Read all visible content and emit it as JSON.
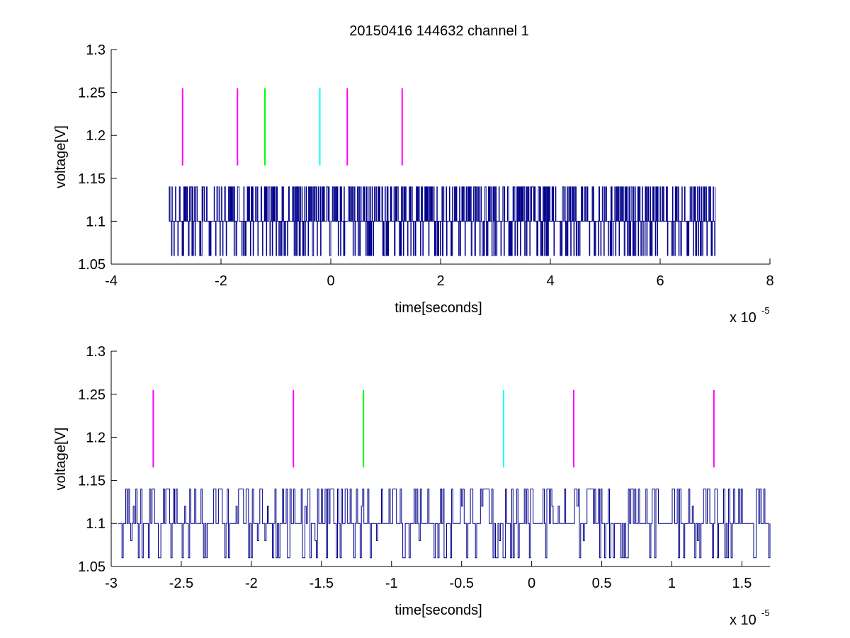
{
  "figure": {
    "title": "20150416 144632 channel 1"
  },
  "chart_data": [
    {
      "type": "line",
      "title": "20150416 144632 channel 1",
      "xlabel": "time[seconds]",
      "ylabel": "voltage[V]",
      "x_exponent_label": "x 10",
      "x_exponent": "-5",
      "xlim": [
        -4,
        8
      ],
      "ylim": [
        1.05,
        1.3
      ],
      "x_ticks": [
        -4,
        -2,
        0,
        2,
        4,
        6,
        8
      ],
      "x_tick_labels": [
        "-4",
        "-2",
        "0",
        "2",
        "4",
        "6",
        "8"
      ],
      "y_ticks": [
        1.05,
        1.1,
        1.15,
        1.2,
        1.25,
        1.3
      ],
      "y_tick_labels": [
        "1.05",
        "1.1",
        "1.15",
        "1.2",
        "1.25",
        "1.3"
      ],
      "grid": false,
      "series": [
        {
          "color": "#00008b",
          "x_range": [
            -2.95,
            7.0
          ],
          "levels": [
            1.06,
            1.1,
            1.14
          ],
          "baseline": 1.1,
          "note_kind": "noisy-digital"
        }
      ],
      "markers": [
        {
          "x": -2.7,
          "y_range": [
            1.165,
            1.255
          ],
          "color": "#ff00ff"
        },
        {
          "x": -1.7,
          "y_range": [
            1.165,
            1.255
          ],
          "color": "#ff00ff"
        },
        {
          "x": -1.2,
          "y_range": [
            1.165,
            1.255
          ],
          "color": "#00ff00"
        },
        {
          "x": -0.2,
          "y_range": [
            1.165,
            1.255
          ],
          "color": "#00ffff"
        },
        {
          "x": 0.3,
          "y_range": [
            1.165,
            1.255
          ],
          "color": "#ff00ff"
        },
        {
          "x": 1.3,
          "y_range": [
            1.165,
            1.255
          ],
          "color": "#ff00ff"
        }
      ]
    },
    {
      "type": "line",
      "title": "",
      "xlabel": "time[seconds]",
      "ylabel": "voltage[V]",
      "x_exponent_label": "x 10",
      "x_exponent": "-5",
      "xlim": [
        -3.0,
        1.7
      ],
      "ylim": [
        1.05,
        1.3
      ],
      "x_ticks": [
        -3,
        -2.5,
        -2,
        -1.5,
        -1,
        -0.5,
        0,
        0.5,
        1,
        1.5
      ],
      "x_tick_labels": [
        "-3",
        "-2.5",
        "-2",
        "-1.5",
        "-1",
        "-0.5",
        "0",
        "0.5",
        "1",
        "1.5"
      ],
      "y_ticks": [
        1.05,
        1.1,
        1.15,
        1.2,
        1.25,
        1.3
      ],
      "y_tick_labels": [
        "1.05",
        "1.1",
        "1.15",
        "1.2",
        "1.25",
        "1.3"
      ],
      "grid": false,
      "series": [
        {
          "color": "#00008b",
          "x_range": [
            -2.95,
            1.7
          ],
          "levels": [
            1.06,
            1.08,
            1.1,
            1.12,
            1.14
          ],
          "baseline": 1.1,
          "note_kind": "noisy-digital"
        }
      ],
      "markers": [
        {
          "x": -2.7,
          "y_range": [
            1.165,
            1.255
          ],
          "color": "#ff00ff"
        },
        {
          "x": -1.7,
          "y_range": [
            1.165,
            1.255
          ],
          "color": "#ff00ff"
        },
        {
          "x": -1.2,
          "y_range": [
            1.165,
            1.255
          ],
          "color": "#00ff00"
        },
        {
          "x": -0.2,
          "y_range": [
            1.165,
            1.255
          ],
          "color": "#00ffff"
        },
        {
          "x": 0.3,
          "y_range": [
            1.165,
            1.255
          ],
          "color": "#ff00ff"
        },
        {
          "x": 1.3,
          "y_range": [
            1.165,
            1.255
          ],
          "color": "#ff00ff"
        }
      ]
    }
  ]
}
